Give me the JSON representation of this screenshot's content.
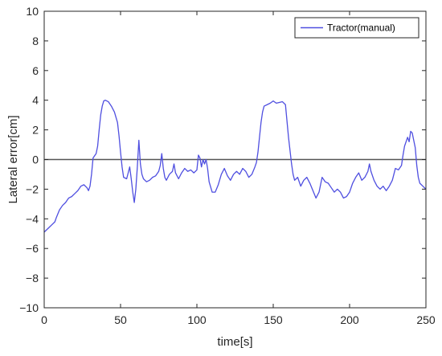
{
  "chart_data": {
    "type": "line",
    "title": "",
    "xlabel": "time[s]",
    "ylabel": "Lateral error[cm]",
    "xlim": [
      0,
      250
    ],
    "ylim": [
      -10,
      10
    ],
    "xticks": [
      0,
      50,
      100,
      150,
      200,
      250
    ],
    "yticks": [
      -10,
      -8,
      -6,
      -4,
      -2,
      0,
      2,
      4,
      6,
      8,
      10
    ],
    "grid": false,
    "legend_position": "top-right",
    "reference_line": {
      "y": 0,
      "color": "#555555"
    },
    "series": [
      {
        "name": "Tractor(manual)",
        "color": "#4f4fe0",
        "points": [
          [
            0,
            -4.9
          ],
          [
            3,
            -4.6
          ],
          [
            5,
            -4.4
          ],
          [
            7,
            -4.2
          ],
          [
            8,
            -3.9
          ],
          [
            10,
            -3.4
          ],
          [
            12,
            -3.1
          ],
          [
            14,
            -2.9
          ],
          [
            16,
            -2.6
          ],
          [
            18,
            -2.5
          ],
          [
            20,
            -2.3
          ],
          [
            22,
            -2.1
          ],
          [
            24,
            -1.8
          ],
          [
            26,
            -1.7
          ],
          [
            28,
            -1.9
          ],
          [
            29,
            -2.1
          ],
          [
            30,
            -1.8
          ],
          [
            31,
            -1.0
          ],
          [
            32,
            0.1
          ],
          [
            34,
            0.4
          ],
          [
            35,
            0.9
          ],
          [
            36,
            2.0
          ],
          [
            37,
            3.0
          ],
          [
            38,
            3.6
          ],
          [
            39,
            3.95
          ],
          [
            40,
            4.0
          ],
          [
            42,
            3.9
          ],
          [
            44,
            3.6
          ],
          [
            46,
            3.2
          ],
          [
            48,
            2.5
          ],
          [
            49,
            1.6
          ],
          [
            50,
            0.5
          ],
          [
            51,
            -0.5
          ],
          [
            52,
            -1.2
          ],
          [
            54,
            -1.3
          ],
          [
            55,
            -0.9
          ],
          [
            56,
            -0.5
          ],
          [
            57,
            -1.3
          ],
          [
            58,
            -2.2
          ],
          [
            59,
            -2.9
          ],
          [
            60,
            -2.0
          ],
          [
            61,
            -0.5
          ],
          [
            62,
            1.3
          ],
          [
            63,
            -0.3
          ],
          [
            64,
            -1.0
          ],
          [
            65,
            -1.3
          ],
          [
            67,
            -1.5
          ],
          [
            69,
            -1.4
          ],
          [
            71,
            -1.2
          ],
          [
            73,
            -1.1
          ],
          [
            75,
            -0.8
          ],
          [
            76,
            -0.4
          ],
          [
            77,
            0.4
          ],
          [
            78,
            -0.6
          ],
          [
            79,
            -1.2
          ],
          [
            80,
            -1.4
          ],
          [
            82,
            -1.0
          ],
          [
            84,
            -0.8
          ],
          [
            85,
            -0.3
          ],
          [
            86,
            -0.9
          ],
          [
            88,
            -1.3
          ],
          [
            90,
            -0.9
          ],
          [
            92,
            -0.6
          ],
          [
            94,
            -0.8
          ],
          [
            96,
            -0.7
          ],
          [
            98,
            -0.9
          ],
          [
            100,
            -0.7
          ],
          [
            101,
            0.3
          ],
          [
            102,
            0.1
          ],
          [
            103,
            -0.5
          ],
          [
            104,
            0.0
          ],
          [
            105,
            -0.3
          ],
          [
            106,
            0.0
          ],
          [
            107,
            -0.6
          ],
          [
            108,
            -1.5
          ],
          [
            110,
            -2.2
          ],
          [
            112,
            -2.2
          ],
          [
            114,
            -1.7
          ],
          [
            116,
            -1.0
          ],
          [
            118,
            -0.6
          ],
          [
            120,
            -1.1
          ],
          [
            122,
            -1.4
          ],
          [
            124,
            -1.0
          ],
          [
            126,
            -0.8
          ],
          [
            128,
            -1.0
          ],
          [
            130,
            -0.6
          ],
          [
            132,
            -0.8
          ],
          [
            134,
            -1.2
          ],
          [
            136,
            -1.0
          ],
          [
            138,
            -0.5
          ],
          [
            139,
            -0.2
          ],
          [
            140,
            0.5
          ],
          [
            141,
            1.5
          ],
          [
            142,
            2.5
          ],
          [
            143,
            3.2
          ],
          [
            144,
            3.6
          ],
          [
            146,
            3.7
          ],
          [
            148,
            3.8
          ],
          [
            150,
            3.95
          ],
          [
            152,
            3.8
          ],
          [
            154,
            3.85
          ],
          [
            156,
            3.9
          ],
          [
            158,
            3.7
          ],
          [
            159,
            2.6
          ],
          [
            160,
            1.5
          ],
          [
            161,
            0.6
          ],
          [
            162,
            -0.3
          ],
          [
            163,
            -1.0
          ],
          [
            164,
            -1.4
          ],
          [
            165,
            -1.3
          ],
          [
            166,
            -1.2
          ],
          [
            167,
            -1.5
          ],
          [
            168,
            -1.8
          ],
          [
            170,
            -1.4
          ],
          [
            172,
            -1.2
          ],
          [
            174,
            -1.6
          ],
          [
            176,
            -2.1
          ],
          [
            178,
            -2.6
          ],
          [
            180,
            -2.2
          ],
          [
            182,
            -1.2
          ],
          [
            184,
            -1.5
          ],
          [
            186,
            -1.6
          ],
          [
            188,
            -1.9
          ],
          [
            190,
            -2.2
          ],
          [
            192,
            -2.0
          ],
          [
            194,
            -2.2
          ],
          [
            196,
            -2.6
          ],
          [
            198,
            -2.5
          ],
          [
            200,
            -2.2
          ],
          [
            202,
            -1.6
          ],
          [
            204,
            -1.2
          ],
          [
            206,
            -0.9
          ],
          [
            208,
            -1.4
          ],
          [
            210,
            -1.2
          ],
          [
            212,
            -0.8
          ],
          [
            213,
            -0.3
          ],
          [
            214,
            -0.8
          ],
          [
            216,
            -1.4
          ],
          [
            218,
            -1.8
          ],
          [
            220,
            -2.0
          ],
          [
            222,
            -1.8
          ],
          [
            224,
            -2.1
          ],
          [
            226,
            -1.8
          ],
          [
            228,
            -1.4
          ],
          [
            230,
            -0.6
          ],
          [
            232,
            -0.7
          ],
          [
            234,
            -0.4
          ],
          [
            235,
            0.3
          ],
          [
            236,
            0.9
          ],
          [
            238,
            1.5
          ],
          [
            239,
            1.2
          ],
          [
            240,
            1.9
          ],
          [
            241,
            1.8
          ],
          [
            242,
            1.3
          ],
          [
            243,
            0.8
          ],
          [
            244,
            -0.4
          ],
          [
            245,
            -1.2
          ],
          [
            246,
            -1.6
          ],
          [
            248,
            -1.8
          ],
          [
            250,
            -2.0
          ]
        ]
      }
    ]
  }
}
